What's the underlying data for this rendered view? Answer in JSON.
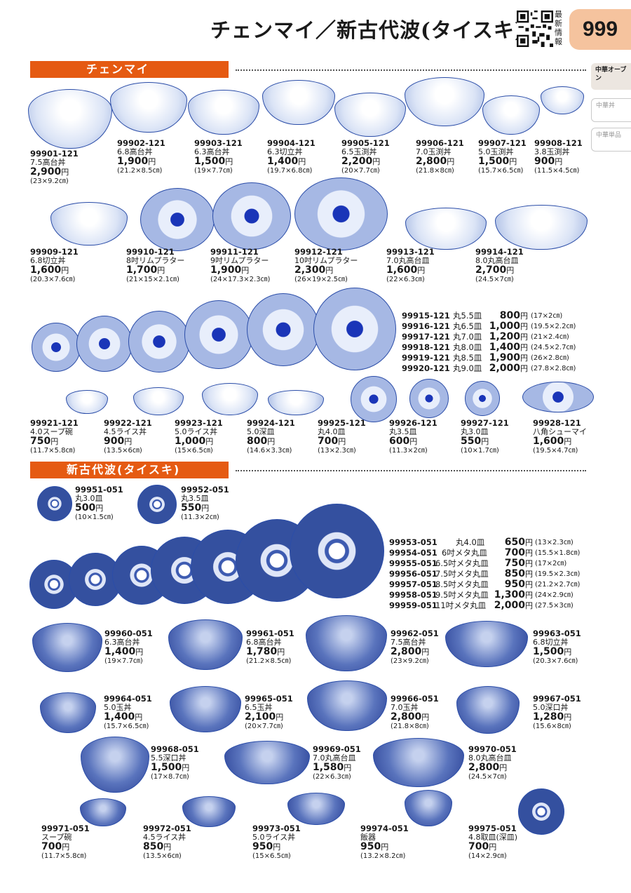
{
  "header": {
    "title": "チェンマイ／新古代波(タイスキ)",
    "new_info": "最新情報",
    "page_number": "999"
  },
  "side_tabs": [
    {
      "label": "中華オーブン",
      "active": true
    },
    {
      "label": "中華丼",
      "active": false
    },
    {
      "label": "中華単品",
      "active": false
    }
  ],
  "sections": {
    "chiangmai": "チェンマイ",
    "shinkodaiha": "新古代波(タイスキ)"
  },
  "chiangmai_items": [
    {
      "code": "99901-121",
      "name": "7.5高台丼",
      "price": "2,900",
      "size": "(23×9.2㎝)"
    },
    {
      "code": "99902-121",
      "name": "6.8高台丼",
      "price": "1,900",
      "size": "(21.2×8.5㎝)"
    },
    {
      "code": "99903-121",
      "name": "6.3高台丼",
      "price": "1,500",
      "size": "(19×7.7㎝)"
    },
    {
      "code": "99904-121",
      "name": "6.3切立丼",
      "price": "1,400",
      "size": "(19.7×6.8㎝)"
    },
    {
      "code": "99905-121",
      "name": "6.5玉渕丼",
      "price": "2,200",
      "size": "(20×7.7㎝)"
    },
    {
      "code": "99906-121",
      "name": "7.0玉渕丼",
      "price": "2,800",
      "size": "(21.8×8㎝)"
    },
    {
      "code": "99907-121",
      "name": "5.0玉渕丼",
      "price": "1,500",
      "size": "(15.7×6.5㎝)"
    },
    {
      "code": "99908-121",
      "name": "3.8玉渕丼",
      "price": "900",
      "size": "(11.5×4.5㎝)"
    },
    {
      "code": "99909-121",
      "name": "6.8切立丼",
      "price": "1,600",
      "size": "(20.3×7.6㎝)"
    },
    {
      "code": "99910-121",
      "name": "8吋リムプラター",
      "price": "1,700",
      "size": "(21×15×2.1㎝)"
    },
    {
      "code": "99911-121",
      "name": "9吋リムプラター",
      "price": "1,900",
      "size": "(24×17.3×2.3㎝)"
    },
    {
      "code": "99912-121",
      "name": "10吋リムプラター",
      "price": "2,300",
      "size": "(26×19×2.5㎝)"
    },
    {
      "code": "99913-121",
      "name": "7.0丸高台皿",
      "price": "1,600",
      "size": "(22×6.3㎝)"
    },
    {
      "code": "99914-121",
      "name": "8.0丸高台皿",
      "price": "2,700",
      "size": "(24.5×7㎝)"
    },
    {
      "code": "99921-121",
      "name": "4.0スープ碗",
      "price": "750",
      "size": "(11.7×5.8㎝)"
    },
    {
      "code": "99922-121",
      "name": "4.5ライス丼",
      "price": "900",
      "size": "(13.5×6㎝)"
    },
    {
      "code": "99923-121",
      "name": "5.0ライス丼",
      "price": "1,000",
      "size": "(15×6.5㎝)"
    },
    {
      "code": "99924-121",
      "name": "5.0深皿",
      "price": "800",
      "size": "(14.6×3.3㎝)"
    },
    {
      "code": "99925-121",
      "name": "丸4.0皿",
      "price": "700",
      "size": "(13×2.3㎝)"
    },
    {
      "code": "99926-121",
      "name": "丸3.5皿",
      "price": "600",
      "size": "(11.3×2㎝)"
    },
    {
      "code": "99927-121",
      "name": "丸3.0皿",
      "price": "550",
      "size": "(10×1.7㎝)"
    },
    {
      "code": "99928-121",
      "name": "八角シューマイ",
      "price": "1,600",
      "size": "(19.5×4.7㎝)"
    }
  ],
  "chiangmai_plates_list": [
    {
      "code": "99915-121",
      "name": "丸5.5皿",
      "price": "800",
      "size": "(17×2㎝)"
    },
    {
      "code": "99916-121",
      "name": "丸6.5皿",
      "price": "1,000",
      "size": "(19.5×2.2㎝)"
    },
    {
      "code": "99917-121",
      "name": "丸7.0皿",
      "price": "1,200",
      "size": "(21×2.4㎝)"
    },
    {
      "code": "99918-121",
      "name": "丸8.0皿",
      "price": "1,400",
      "size": "(24.5×2.7㎝)"
    },
    {
      "code": "99919-121",
      "name": "丸8.5皿",
      "price": "1,900",
      "size": "(26×2.8㎝)"
    },
    {
      "code": "99920-121",
      "name": "丸9.0皿",
      "price": "2,000",
      "size": "(27.8×2.8㎝)"
    }
  ],
  "shinko_items": [
    {
      "code": "99951-051",
      "name": "丸3.0皿",
      "price": "500",
      "size": "(10×1.5㎝)"
    },
    {
      "code": "99952-051",
      "name": "丸3.5皿",
      "price": "550",
      "size": "(11.3×2㎝)"
    },
    {
      "code": "99960-051",
      "name": "6.3高台丼",
      "price": "1,400",
      "size": "(19×7.7㎝)"
    },
    {
      "code": "99961-051",
      "name": "6.8高台丼",
      "price": "1,780",
      "size": "(21.2×8.5㎝)"
    },
    {
      "code": "99962-051",
      "name": "7.5高台丼",
      "price": "2,800",
      "size": "(23×9.2㎝)"
    },
    {
      "code": "99963-051",
      "name": "6.8切立丼",
      "price": "1,500",
      "size": "(20.3×7.6㎝)"
    },
    {
      "code": "99964-051",
      "name": "5.0玉丼",
      "price": "1,400",
      "size": "(15.7×6.5㎝)"
    },
    {
      "code": "99965-051",
      "name": "6.5玉丼",
      "price": "2,100",
      "size": "(20×7.7㎝)"
    },
    {
      "code": "99966-051",
      "name": "7.0玉丼",
      "price": "2,800",
      "size": "(21.8×8㎝)"
    },
    {
      "code": "99967-051",
      "name": "5.0深口丼",
      "price": "1,280",
      "size": "(15.6×8㎝)"
    },
    {
      "code": "99968-051",
      "name": "5.5深口丼",
      "price": "1,500",
      "size": "(17×8.7㎝)"
    },
    {
      "code": "99969-051",
      "name": "7.0丸高台皿",
      "price": "1,580",
      "size": "(22×6.3㎝)"
    },
    {
      "code": "99970-051",
      "name": "8.0丸高台皿",
      "price": "2,800",
      "size": "(24.5×7㎝)"
    },
    {
      "code": "99971-051",
      "name": "スープ碗",
      "price": "700",
      "size": "(11.7×5.8㎝)"
    },
    {
      "code": "99972-051",
      "name": "4.5ライス丼",
      "price": "850",
      "size": "(13.5×6㎝)"
    },
    {
      "code": "99973-051",
      "name": "5.0ライス丼",
      "price": "950",
      "size": "(15×6.5㎝)"
    },
    {
      "code": "99974-051",
      "name": "飯器",
      "price": "950",
      "size": "(13.2×8.2㎝)"
    },
    {
      "code": "99975-051",
      "name": "4.8取皿(深皿)",
      "price": "700",
      "size": "(14×2.9㎝)"
    }
  ],
  "shinko_plates_list": [
    {
      "code": "99953-051",
      "name": "丸4.0皿",
      "price": "650",
      "size": "(13×2.3㎝)"
    },
    {
      "code": "99954-051",
      "name": "6吋メタ丸皿",
      "price": "700",
      "size": "(15.5×1.8㎝)"
    },
    {
      "code": "99955-051",
      "name": "6.5吋メタ丸皿",
      "price": "750",
      "size": "(17×2㎝)"
    },
    {
      "code": "99956-051",
      "name": "7.5吋メタ丸皿",
      "price": "850",
      "size": "(19.5×2.3㎝)"
    },
    {
      "code": "99957-051",
      "name": "8.5吋メタ丸皿",
      "price": "950",
      "size": "(21.2×2.7㎝)"
    },
    {
      "code": "99958-051",
      "name": "9.5吋メタ丸皿",
      "price": "1,300",
      "size": "(24×2.9㎝)"
    },
    {
      "code": "99959-051",
      "name": "11吋メタ丸皿",
      "price": "2,000",
      "size": "(27.5×3㎝)"
    }
  ],
  "currency": "円"
}
